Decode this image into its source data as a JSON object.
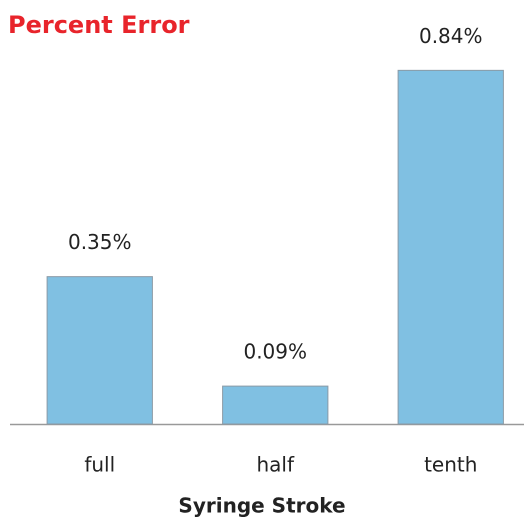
{
  "chart_data": {
    "type": "bar",
    "title": "Percent Error",
    "xlabel": "Syringe Stroke",
    "categories": [
      "full",
      "half",
      "tenth"
    ],
    "values": [
      0.35,
      0.09,
      0.84
    ],
    "value_labels": [
      "0.35%",
      "0.09%",
      "0.84%"
    ],
    "color": "#80c0e2",
    "ylim": [
      0,
      1
    ]
  }
}
